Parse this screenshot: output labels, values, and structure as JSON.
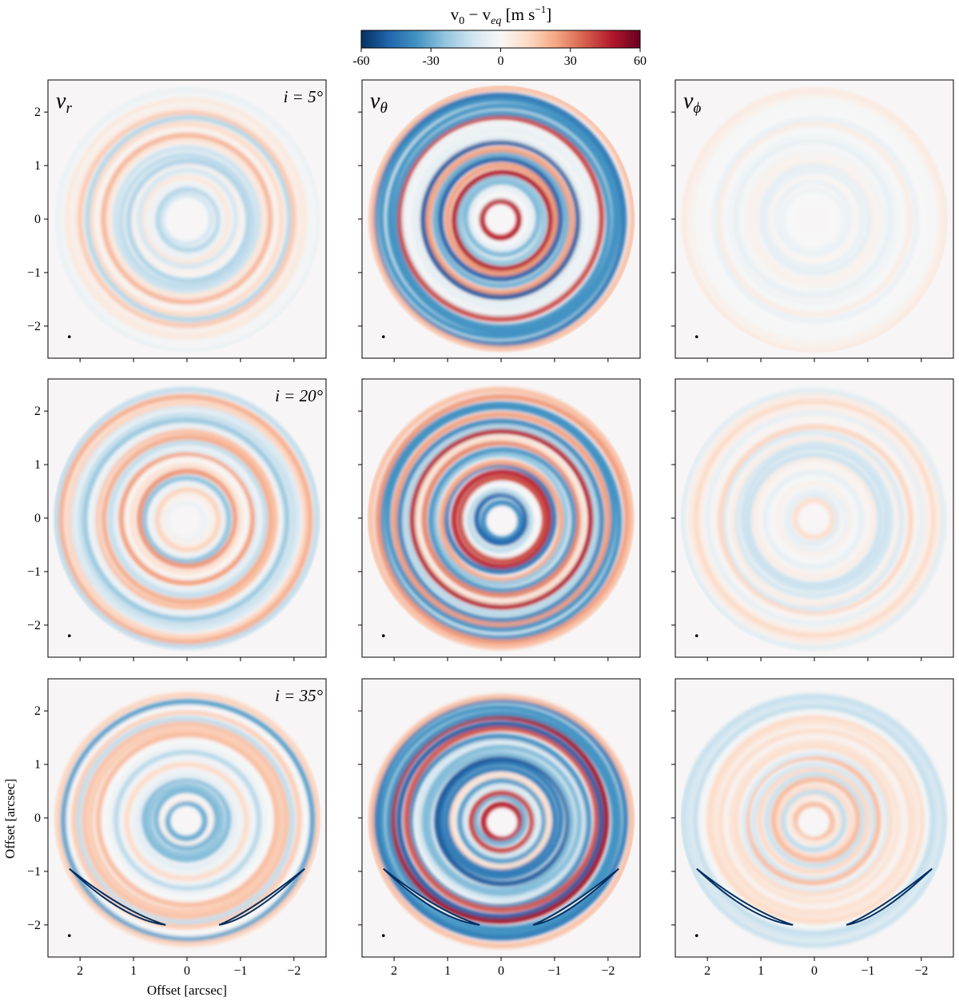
{
  "chart_data": {
    "type": "heatmap",
    "colorbar": {
      "label_main": "v",
      "label_sub0": "0",
      "label_minus": " − v",
      "label_sub_eq": "eq",
      "label_units": " [m s",
      "label_exp": "−1",
      "label_close": "]",
      "colormap": "RdBu_r",
      "range": [
        -60,
        60
      ],
      "ticks": [
        "-60",
        "-30",
        "0",
        "30",
        "60"
      ],
      "colors": [
        "#053061",
        "#2166ac",
        "#4393c3",
        "#92c5de",
        "#d1e5f0",
        "#f7f7f7",
        "#fddbc7",
        "#f4a582",
        "#d6604d",
        "#b2182b",
        "#67001f"
      ]
    },
    "xlabel": "Offset [arcsec]",
    "ylabel": "Offset [arcsec]",
    "xlim": [
      2.6,
      -2.6
    ],
    "ylim": [
      -2.6,
      2.6
    ],
    "xticks": [
      2,
      1,
      0,
      -1,
      -2
    ],
    "xtick_labels": [
      "2",
      "1",
      "0",
      "−1",
      "−2"
    ],
    "yticks": [
      2,
      1,
      0,
      -1,
      -2
    ],
    "ytick_labels": [
      "2",
      "1",
      "0",
      "−1",
      "−2"
    ],
    "columns": [
      {
        "component": "v",
        "sub": "r",
        "amplitude": 0.3
      },
      {
        "component": "v",
        "sub": "θ",
        "amplitude": 0.85
      },
      {
        "component": "v",
        "sub": "ϕ",
        "amplitude": 0.05
      }
    ],
    "rows": [
      {
        "inclination_label": "i = 5°",
        "inclination": 5
      },
      {
        "inclination_label": "i = 20°",
        "inclination": 20
      },
      {
        "inclination_label": "i = 35°",
        "inclination": 35
      }
    ],
    "beam": {
      "x": 2.2,
      "y": -2.2
    }
  }
}
